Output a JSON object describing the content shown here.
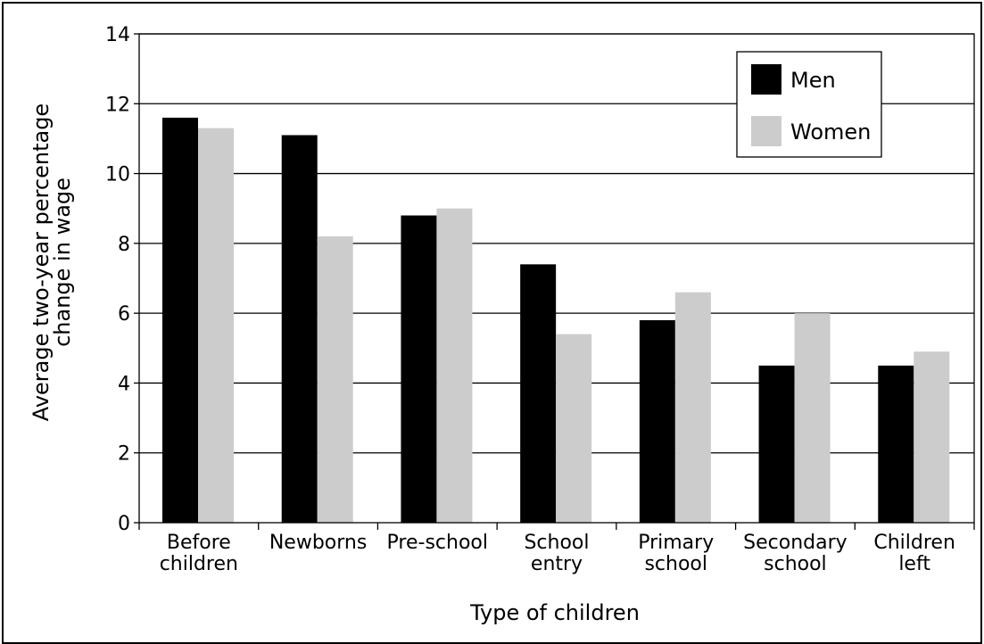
{
  "chart_data": {
    "type": "bar",
    "categories": [
      [
        "Before",
        "children"
      ],
      [
        "Newborns"
      ],
      [
        "Pre-school"
      ],
      [
        "School",
        "entry"
      ],
      [
        "Primary",
        "school"
      ],
      [
        "Secondary",
        "school"
      ],
      [
        "Children",
        "left"
      ]
    ],
    "series": [
      {
        "name": "Men",
        "color": "#000000",
        "values": [
          11.6,
          11.1,
          8.8,
          7.4,
          5.8,
          4.5,
          4.5
        ]
      },
      {
        "name": "Women",
        "color": "#cccccc",
        "values": [
          11.3,
          8.2,
          9.0,
          5.4,
          6.6,
          6.0,
          4.9
        ]
      }
    ],
    "xlabel": "Type of children",
    "ylabel": [
      "Average two-year percentage",
      "change in wage"
    ],
    "ylim": [
      0,
      14
    ],
    "yticks": [
      0,
      2,
      4,
      6,
      8,
      10,
      12,
      14
    ],
    "grid": true,
    "legend": "top-right"
  }
}
